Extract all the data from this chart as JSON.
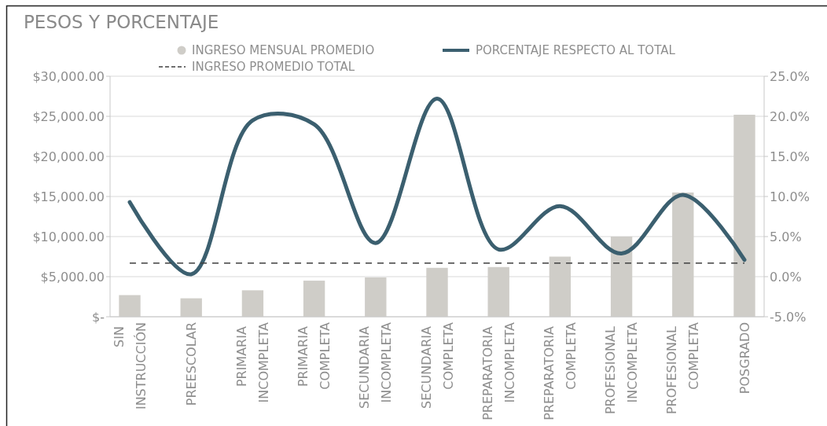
{
  "chart_data": {
    "type": "bar",
    "title": "PESOS Y PORCENTAJE",
    "categories": [
      "SIN INSTRUCCIÓN",
      "PREESCOLAR",
      "PRIMARIA INCOMPLETA",
      "PRIMARIA COMPLETA",
      "SECUNDARIA INCOMPLETA",
      "SECUNDARIA COMPLETA",
      "PREPARATORIA INCOMPLETA",
      "PREPARATORIA COMPLETA",
      "PROFESIONAL INCOMPLETA",
      "PROFESIONAL COMPLETA",
      "POSGRADO"
    ],
    "series": [
      {
        "name": "INGRESO MENSUAL PROMEDIO",
        "color": "#cfcdc8",
        "values": [
          2700,
          2300,
          3300,
          4500,
          4900,
          6100,
          6200,
          7500,
          10000,
          15500,
          25200
        ]
      },
      {
        "name": "PORCENTAJE RESPECTO AL TOTAL",
        "type": "line",
        "axis": "y2",
        "color": "#3b5f6f",
        "values": [
          9.3,
          0.3,
          19.5,
          19.0,
          4.2,
          22.2,
          3.4,
          8.8,
          2.9,
          10.2,
          2.1
        ]
      },
      {
        "name": "INGRESO PROMEDIO TOTAL",
        "type": "line",
        "color": "#404040",
        "line_style": "dashed",
        "values": [
          6700,
          6700,
          6700,
          6700,
          6700,
          6700,
          6700,
          6700,
          6700,
          6700,
          6700
        ]
      }
    ],
    "ylim": [
      0,
      30000
    ],
    "yticks": [
      {
        "value": 0,
        "label": "$-"
      },
      {
        "value": 5000,
        "label": "$5,000.00"
      },
      {
        "value": 10000,
        "label": "$10,000.00"
      },
      {
        "value": 15000,
        "label": "$15,000.00"
      },
      {
        "value": 20000,
        "label": "$20,000.00"
      },
      {
        "value": 25000,
        "label": "$25,000.00"
      },
      {
        "value": 30000,
        "label": "$30,000.00"
      }
    ],
    "y2lim": [
      -5,
      25
    ],
    "y2ticks": [
      {
        "value": -5,
        "label": "-5.0%"
      },
      {
        "value": 0,
        "label": "0.0%"
      },
      {
        "value": 5,
        "label": "5.0%"
      },
      {
        "value": 10,
        "label": "10.0%"
      },
      {
        "value": 15,
        "label": "15.0%"
      },
      {
        "value": 20,
        "label": "20.0%"
      },
      {
        "value": 25,
        "label": "25.0%"
      }
    ],
    "grid": "y",
    "legend": "top"
  }
}
